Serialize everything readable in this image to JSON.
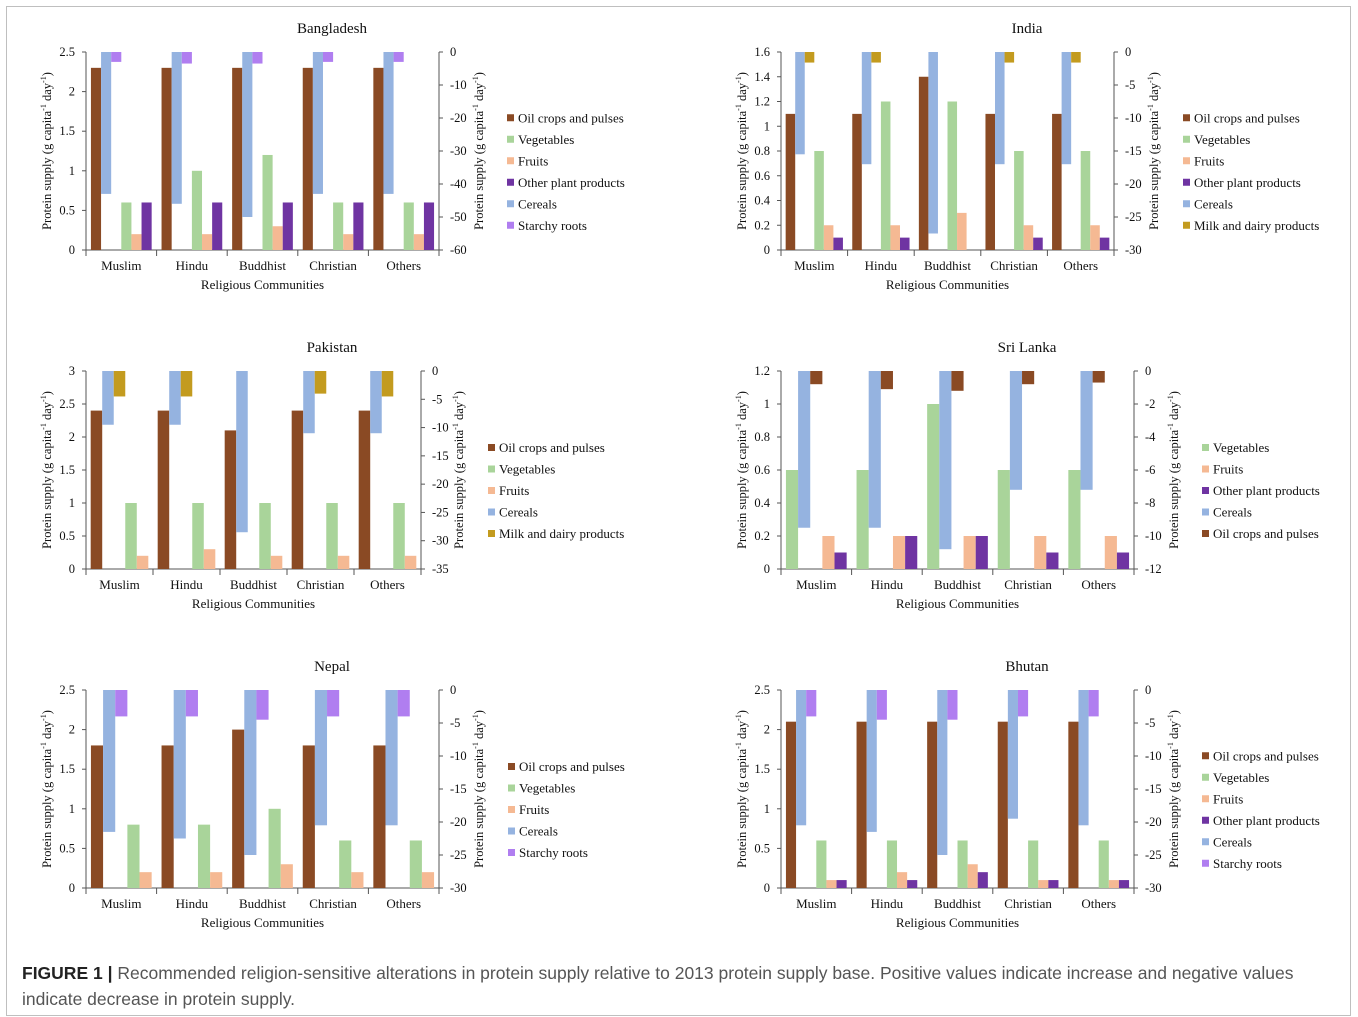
{
  "figure": {
    "label": "FIGURE 1 |",
    "caption": "Recommended religion-sensitive alterations in protein supply relative to 2013 protein supply base. Positive values indicate increase and negative values indicate decrease in protein supply."
  },
  "colors": {
    "Oil crops and pulses": "#8a4a24",
    "Vegetables": "#a9d49a",
    "Fruits": "#f5b993",
    "Other plant products": "#6f34a2",
    "Cereals": "#95b3e0",
    "Starchy roots": "#b07ef0",
    "Milk and dairy products": "#c39b1f"
  },
  "chart_data": [
    {
      "type": "bar",
      "title": "Bangladesh",
      "xlabel": "Religious Communities",
      "ylabel_left": "Protein supply (g capita-1 day-1)",
      "ylabel_right": "Protein supply (g capita-1 day-1)",
      "categories": [
        "Muslim",
        "Hindu",
        "Buddhist",
        "Christian",
        "Others"
      ],
      "left_axis": {
        "min": 0,
        "max": 2.5,
        "ticks": [
          "0",
          "0.5",
          "1",
          "1.5",
          "2",
          "2.5"
        ]
      },
      "right_axis": {
        "min": -60,
        "max": 0,
        "ticks": [
          "-60",
          "-50",
          "-40",
          "-30",
          "-20",
          "-10",
          "0"
        ]
      },
      "legend": [
        "Oil crops and pulses",
        "Vegetables",
        "Fruits",
        "Other plant products",
        "Cereals",
        "Starchy roots"
      ],
      "series": [
        {
          "name": "Oil crops and pulses",
          "axis": "left",
          "values": [
            2.3,
            2.3,
            2.3,
            2.3,
            2.3
          ]
        },
        {
          "name": "Cereals",
          "axis": "right",
          "values": [
            -43,
            -46,
            -50,
            -43,
            -43
          ]
        },
        {
          "name": "Starchy roots",
          "axis": "right",
          "values": [
            -3,
            -3.5,
            -3.5,
            -3,
            -3
          ]
        },
        {
          "name": "Vegetables",
          "axis": "left",
          "values": [
            0.6,
            1.0,
            1.2,
            0.6,
            0.6
          ]
        },
        {
          "name": "Fruits",
          "axis": "left",
          "values": [
            0.2,
            0.2,
            0.3,
            0.2,
            0.2
          ]
        },
        {
          "name": "Other plant products",
          "axis": "left",
          "values": [
            0.6,
            0.6,
            0.6,
            0.6,
            0.6
          ]
        }
      ]
    },
    {
      "type": "bar",
      "title": "India",
      "xlabel": "Religious Communities",
      "ylabel_left": "Protein supply (g capita-1 day-1)",
      "ylabel_right": "Protein supply (g capita-1 day-1)",
      "categories": [
        "Muslim",
        "Hindu",
        "Buddhist",
        "Christian",
        "Others"
      ],
      "left_axis": {
        "min": 0,
        "max": 1.6,
        "ticks": [
          "0",
          "0.2",
          "0.4",
          "0.6",
          "0.8",
          "1",
          "1.2",
          "1.4",
          "1.6"
        ]
      },
      "right_axis": {
        "min": -30,
        "max": 0,
        "ticks": [
          "-30",
          "-25",
          "-20",
          "-15",
          "-10",
          "-5",
          "0"
        ]
      },
      "legend": [
        "Oil crops and pulses",
        "Vegetables",
        "Fruits",
        "Other plant products",
        "Cereals",
        "Milk and dairy products"
      ],
      "series": [
        {
          "name": "Oil crops and pulses",
          "axis": "left",
          "values": [
            1.1,
            1.1,
            1.4,
            1.1,
            1.1
          ]
        },
        {
          "name": "Cereals",
          "axis": "right",
          "values": [
            -15.5,
            -17,
            -27.5,
            -17,
            -17
          ]
        },
        {
          "name": "Milk and dairy products",
          "axis": "right",
          "values": [
            -1.6,
            -1.6,
            0,
            -1.6,
            -1.6
          ]
        },
        {
          "name": "Vegetables",
          "axis": "left",
          "values": [
            0.8,
            1.2,
            1.2,
            0.8,
            0.8
          ]
        },
        {
          "name": "Fruits",
          "axis": "left",
          "values": [
            0.2,
            0.2,
            0.3,
            0.2,
            0.2
          ]
        },
        {
          "name": "Other plant products",
          "axis": "left",
          "values": [
            0.1,
            0.1,
            0,
            0.1,
            0.1
          ]
        }
      ]
    },
    {
      "type": "bar",
      "title": "Pakistan",
      "xlabel": "Religious Communities",
      "ylabel_left": "Protein supply (g capita-1 day-1)",
      "ylabel_right": "Protein supply (g capita-1 day-1)",
      "categories": [
        "Muslim",
        "Hindu",
        "Buddhist",
        "Christian",
        "Others"
      ],
      "left_axis": {
        "min": 0,
        "max": 3,
        "ticks": [
          "0",
          "0.5",
          "1",
          "1.5",
          "2",
          "2.5",
          "3"
        ]
      },
      "right_axis": {
        "min": -35,
        "max": 0,
        "ticks": [
          "-35",
          "-30",
          "-25",
          "-20",
          "-15",
          "-10",
          "-5",
          "0"
        ]
      },
      "legend": [
        "Oil crops and pulses",
        "Vegetables",
        "Fruits",
        "Cereals",
        "Milk and dairy products"
      ],
      "series": [
        {
          "name": "Oil crops and pulses",
          "axis": "left",
          "values": [
            2.4,
            2.4,
            2.1,
            2.4,
            2.4
          ]
        },
        {
          "name": "Cereals",
          "axis": "right",
          "values": [
            -9.5,
            -9.5,
            -28.5,
            -11,
            -11
          ]
        },
        {
          "name": "Milk and dairy products",
          "axis": "right",
          "values": [
            -4.5,
            -4.5,
            0,
            -4,
            -4.5
          ]
        },
        {
          "name": "Vegetables",
          "axis": "left",
          "values": [
            1.0,
            1.0,
            1.0,
            1.0,
            1.0
          ]
        },
        {
          "name": "Fruits",
          "axis": "left",
          "values": [
            0.2,
            0.3,
            0.2,
            0.2,
            0.2
          ]
        }
      ]
    },
    {
      "type": "bar",
      "title": "Sri Lanka",
      "xlabel": "Religious Communities",
      "ylabel_left": "Protein supply (g capita-1 day-1)",
      "ylabel_right": "Protein supply (g capita-1 day-1)",
      "categories": [
        "Muslim",
        "Hindu",
        "Buddhist",
        "Christian",
        "Others"
      ],
      "left_axis": {
        "min": 0,
        "max": 1.2,
        "ticks": [
          "0",
          "0.2",
          "0.4",
          "0.6",
          "0.8",
          "1",
          "1.2"
        ]
      },
      "right_axis": {
        "min": -12,
        "max": 0,
        "ticks": [
          "-12",
          "-10",
          "-8",
          "-6",
          "-4",
          "-2",
          "0"
        ]
      },
      "legend": [
        "Vegetables",
        "Fruits",
        "Other plant products",
        "Cereals",
        "Oil crops and pulses"
      ],
      "series": [
        {
          "name": "Vegetables",
          "axis": "left",
          "values": [
            0.6,
            0.6,
            1.0,
            0.6,
            0.6
          ]
        },
        {
          "name": "Cereals",
          "axis": "right",
          "values": [
            -9.5,
            -9.5,
            -10.8,
            -7.2,
            -7.2
          ]
        },
        {
          "name": "Oil crops and pulses",
          "axis": "right",
          "values": [
            -0.8,
            -1.1,
            -1.2,
            -0.8,
            -0.7
          ]
        },
        {
          "name": "Fruits",
          "axis": "left",
          "values": [
            0.2,
            0.2,
            0.2,
            0.2,
            0.2
          ]
        },
        {
          "name": "Other plant products",
          "axis": "left",
          "values": [
            0.1,
            0.2,
            0.2,
            0.1,
            0.1
          ]
        }
      ]
    },
    {
      "type": "bar",
      "title": "Nepal",
      "xlabel": "Religious Communities",
      "ylabel_left": "Protein supply (g capita-1 day-1)",
      "ylabel_right": "Protein supply (g capita-1 day-1)",
      "categories": [
        "Muslim",
        "Hindu",
        "Buddhist",
        "Christian",
        "Others"
      ],
      "left_axis": {
        "min": 0,
        "max": 2.5,
        "ticks": [
          "0",
          "0.5",
          "1",
          "1.5",
          "2",
          "2.5"
        ]
      },
      "right_axis": {
        "min": -30,
        "max": 0,
        "ticks": [
          "-30",
          "-25",
          "-20",
          "-15",
          "-10",
          "-5",
          "0"
        ]
      },
      "legend": [
        "Oil crops and pulses",
        "Vegetables",
        "Fruits",
        "Cereals",
        "Starchy roots"
      ],
      "series": [
        {
          "name": "Oil crops and pulses",
          "axis": "left",
          "values": [
            1.8,
            1.8,
            2.0,
            1.8,
            1.8
          ]
        },
        {
          "name": "Cereals",
          "axis": "right",
          "values": [
            -21.5,
            -22.5,
            -25,
            -20.5,
            -20.5
          ]
        },
        {
          "name": "Starchy roots",
          "axis": "right",
          "values": [
            -4,
            -4,
            -4.5,
            -4,
            -4
          ]
        },
        {
          "name": "Vegetables",
          "axis": "left",
          "values": [
            0.8,
            0.8,
            1.0,
            0.6,
            0.6
          ]
        },
        {
          "name": "Fruits",
          "axis": "left",
          "values": [
            0.2,
            0.2,
            0.3,
            0.2,
            0.2
          ]
        }
      ]
    },
    {
      "type": "bar",
      "title": "Bhutan",
      "xlabel": "Religious Communities",
      "ylabel_left": "Protein supply (g capita-1 day-1)",
      "ylabel_right": "Protein supply (g capita-1 day-1)",
      "categories": [
        "Muslim",
        "Hindu",
        "Buddhist",
        "Christian",
        "Others"
      ],
      "left_axis": {
        "min": 0,
        "max": 2.5,
        "ticks": [
          "0",
          "0.5",
          "1",
          "1.5",
          "2",
          "2.5"
        ]
      },
      "right_axis": {
        "min": -30,
        "max": 0,
        "ticks": [
          "-30",
          "-25",
          "-20",
          "-15",
          "-10",
          "-5",
          "0"
        ]
      },
      "legend": [
        "Oil crops and pulses",
        "Vegetables",
        "Fruits",
        "Other plant products",
        "Cereals",
        "Starchy roots"
      ],
      "series": [
        {
          "name": "Oil crops and pulses",
          "axis": "left",
          "values": [
            2.1,
            2.1,
            2.1,
            2.1,
            2.1
          ]
        },
        {
          "name": "Cereals",
          "axis": "right",
          "values": [
            -20.5,
            -21.5,
            -25,
            -19.5,
            -20.5
          ]
        },
        {
          "name": "Starchy roots",
          "axis": "right",
          "values": [
            -4,
            -4.5,
            -4.5,
            -4,
            -4
          ]
        },
        {
          "name": "Vegetables",
          "axis": "left",
          "values": [
            0.6,
            0.6,
            0.6,
            0.6,
            0.6
          ]
        },
        {
          "name": "Fruits",
          "axis": "left",
          "values": [
            0.1,
            0.2,
            0.3,
            0.1,
            0.1
          ]
        },
        {
          "name": "Other plant products",
          "axis": "left",
          "values": [
            0.1,
            0.1,
            0.2,
            0.1,
            0.1
          ]
        }
      ]
    }
  ]
}
